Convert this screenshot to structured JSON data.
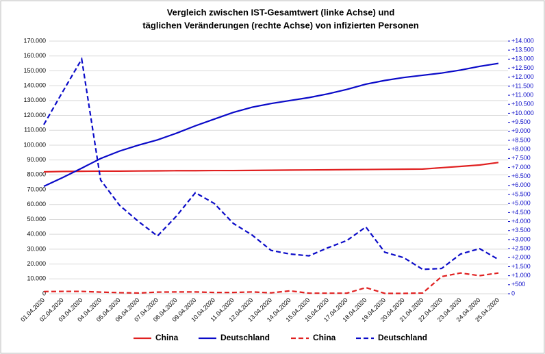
{
  "chart_data": {
    "type": "line",
    "title_lines": [
      "Vergleich zwischen  IST-Gesamtwert (linke Achse) und",
      "täglichen Veränderungen (rechte Achse) von infizierten Personen"
    ],
    "categories": [
      "01.04.2020",
      "02.04.2020",
      "03.04.2020",
      "04.04.2020",
      "05.04.2020",
      "06.04.2020",
      "07.04.2020",
      "08.04.2020",
      "09.04.2020",
      "10.04.2020",
      "11.04.2020",
      "12.04.2020",
      "13.04.2020",
      "14.04.2020",
      "15.04.2020",
      "16.04.2020",
      "17.04.2020",
      "18.04.2020",
      "19.04.2020",
      "20.04.2020",
      "21.04.2020",
      "22.04.2020",
      "23.04.2020",
      "24.04.2020",
      "25.04.2020"
    ],
    "series": [
      {
        "name": "China",
        "color": "#e02020",
        "dash": false,
        "values": [
          82000,
          82300,
          82400,
          82500,
          82500,
          82600,
          82700,
          82800,
          82800,
          82900,
          82900,
          83000,
          83100,
          83200,
          83300,
          83400,
          83500,
          83600,
          83700,
          83800,
          83900,
          84800,
          85700,
          86600,
          88300
        ]
      },
      {
        "name": "Deutschland",
        "color": "#0a0ac8",
        "dash": false,
        "values": [
          72300,
          78200,
          84500,
          91000,
          96000,
          100000,
          103500,
          108000,
          113000,
          117500,
          122000,
          125500,
          128000,
          130000,
          132000,
          134500,
          137500,
          141000,
          143500,
          145500,
          147000,
          148500,
          150500,
          153000,
          155000
        ]
      },
      {
        "name": "China",
        "color": "#e02020",
        "dash": true,
        "axis": "y2",
        "values": [
          120,
          130,
          130,
          90,
          60,
          40,
          90,
          100,
          100,
          70,
          70,
          100,
          50,
          160,
          30,
          30,
          30,
          340,
          20,
          20,
          40,
          950,
          1150,
          1000,
          1150
        ]
      },
      {
        "name": "Deutschland",
        "color": "#0a0ac8",
        "dash": true,
        "axis": "y2",
        "values": [
          9370,
          11200,
          13000,
          6300,
          4900,
          4000,
          3200,
          4300,
          5600,
          5000,
          3900,
          3250,
          2400,
          2200,
          2100,
          2550,
          2950,
          3700,
          2300,
          2000,
          1350,
          1400,
          2200,
          2500,
          1900
        ]
      }
    ],
    "ylim": [
      0,
      170000
    ],
    "yticks": [
      0,
      {
        "value": 10000,
        "label": "10.000"
      },
      {
        "value": 20000,
        "label": "20.000"
      },
      {
        "value": 30000,
        "label": "30.000"
      },
      {
        "value": 40000,
        "label": "40.000"
      },
      {
        "value": 50000,
        "label": "50.000"
      },
      {
        "value": 60000,
        "label": "60.000"
      },
      {
        "value": 70000,
        "label": "70.000"
      },
      {
        "value": 80000,
        "label": "80.000"
      },
      {
        "value": 90000,
        "label": "90.000"
      },
      {
        "value": 100000,
        "label": "100.000"
      },
      {
        "value": 110000,
        "label": "110.000"
      },
      {
        "value": 120000,
        "label": "120.000"
      },
      {
        "value": 130000,
        "label": "130.000"
      },
      {
        "value": 140000,
        "label": "140.000"
      },
      {
        "value": 150000,
        "label": "150.000"
      },
      {
        "value": 160000,
        "label": "160.000"
      },
      {
        "value": 170000,
        "label": "170.000"
      }
    ],
    "y2lim": [
      0,
      14000
    ],
    "y2ticks": [
      0,
      {
        "value": 500,
        "label": "+500"
      },
      {
        "value": 1000,
        "label": "+1.000"
      },
      {
        "value": 1500,
        "label": "+1.500"
      },
      {
        "value": 2000,
        "label": "+2.000"
      },
      {
        "value": 2500,
        "label": "+2.500"
      },
      {
        "value": 3000,
        "label": "+3.000"
      },
      {
        "value": 3500,
        "label": "+3.500"
      },
      {
        "value": 4000,
        "label": "+4.000"
      },
      {
        "value": 4500,
        "label": "+4.500"
      },
      {
        "value": 5000,
        "label": "+5.000"
      },
      {
        "value": 5500,
        "label": "+5.500"
      },
      {
        "value": 6000,
        "label": "+6.000"
      },
      {
        "value": 6500,
        "label": "+6.500"
      },
      {
        "value": 7000,
        "label": "+7.000"
      },
      {
        "value": 7500,
        "label": "+7.500"
      },
      {
        "value": 8000,
        "label": "+8.000"
      },
      {
        "value": 8500,
        "label": "+8.500"
      },
      {
        "value": 9000,
        "label": "+9.000"
      },
      {
        "value": 9500,
        "label": "+9.500"
      },
      {
        "value": 10000,
        "label": "+10.000"
      },
      {
        "value": 10500,
        "label": "+10.500"
      },
      {
        "value": 11000,
        "label": "+11.000"
      },
      {
        "value": 11500,
        "label": "+11.500"
      },
      {
        "value": 12000,
        "label": "+12.000"
      },
      {
        "value": 12500,
        "label": "+12.500"
      },
      {
        "value": 13000,
        "label": "+13.000"
      },
      {
        "value": 13500,
        "label": "+13.500"
      },
      {
        "value": 14000,
        "label": "+14.000"
      }
    ],
    "y2_color": "#0a0ac8",
    "grid": true,
    "legend": "bottom"
  }
}
